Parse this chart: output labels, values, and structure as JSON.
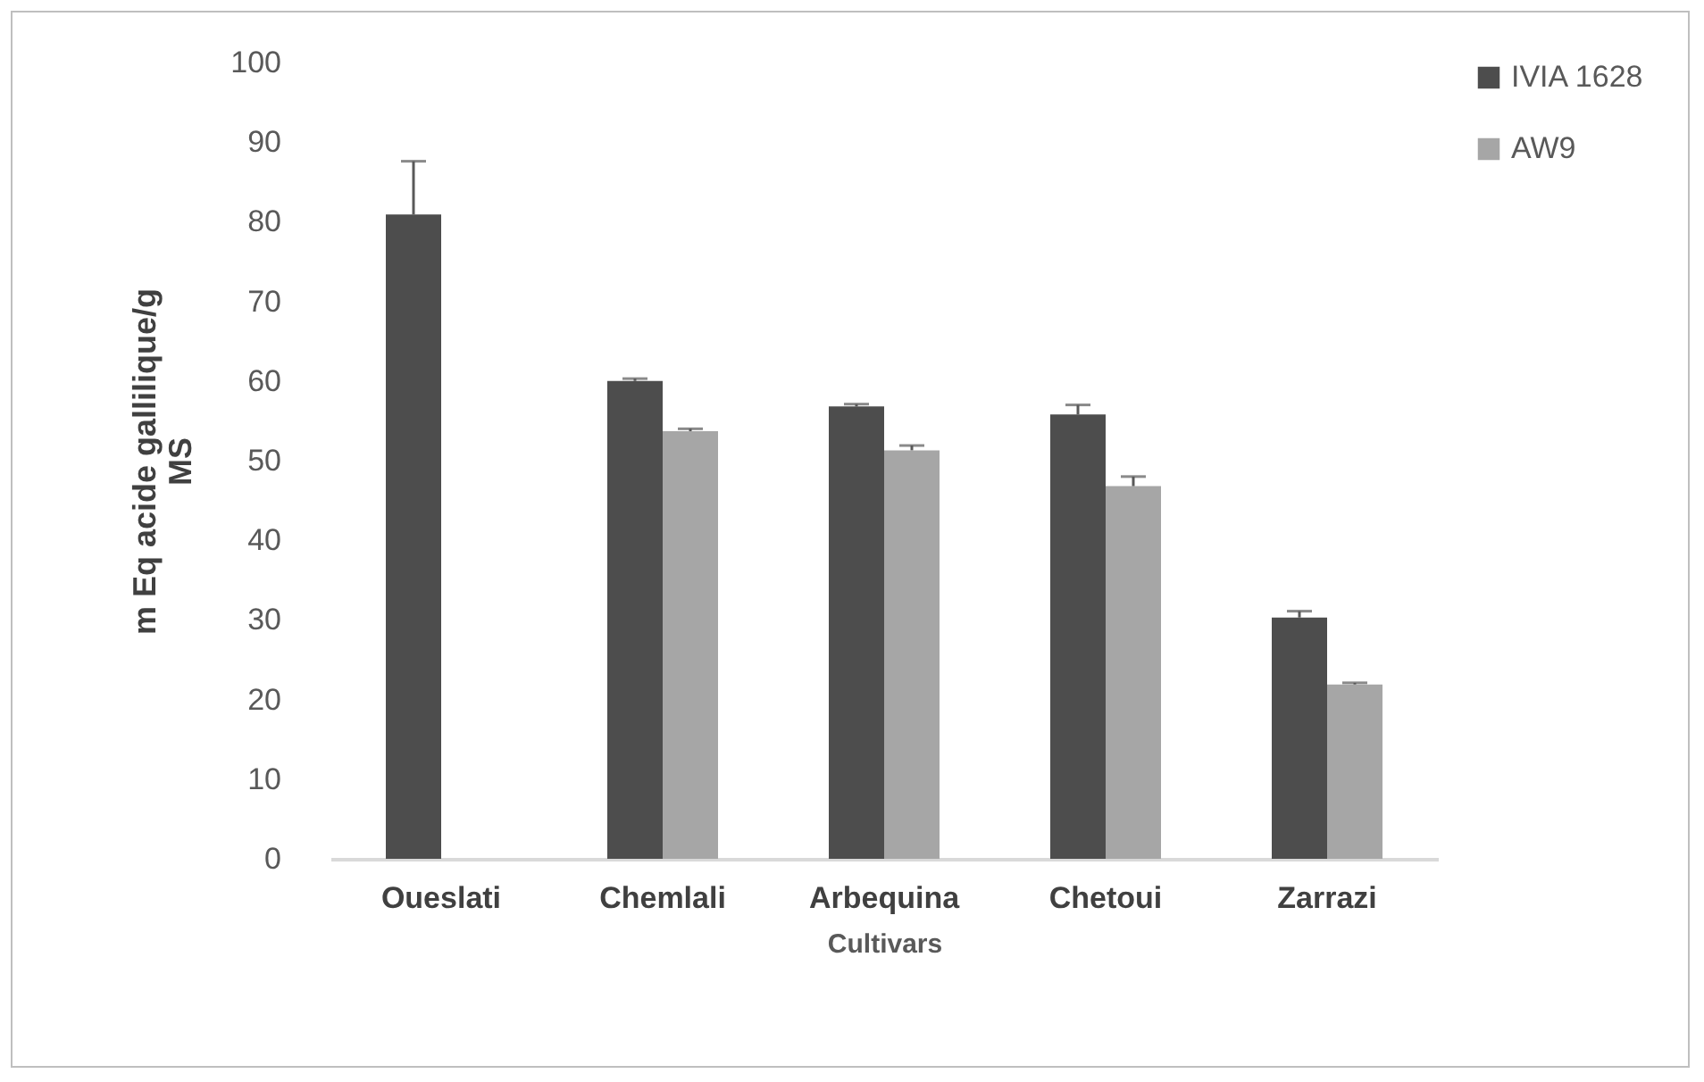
{
  "chart_data": {
    "type": "bar",
    "xlabel": "Cultivars",
    "ylabel": "m Eq acide gallilique/g\nMS",
    "categories": [
      "Oueslati",
      "Chemlali",
      "Arbequina",
      "Chetoui",
      "Zarrazi"
    ],
    "series": [
      {
        "name": "IVIA 1628",
        "color": "#4d4d4d",
        "values": [
          80.9,
          60.0,
          56.8,
          55.8,
          30.3
        ],
        "errors": [
          [
            80.9,
            87.6
          ],
          [
            60.0,
            60.3
          ],
          [
            56.8,
            57.1
          ],
          [
            55.8,
            57.0
          ],
          [
            30.3,
            31.1
          ]
        ]
      },
      {
        "name": "AW9",
        "color": "#a6a6a6",
        "values": [
          null,
          53.7,
          51.3,
          46.8,
          21.9
        ],
        "errors": [
          null,
          [
            53.7,
            54.0
          ],
          [
            51.3,
            51.9
          ],
          [
            46.8,
            48.0
          ],
          [
            21.9,
            22.1
          ]
        ]
      }
    ],
    "ylim": [
      0,
      100
    ],
    "yticks": [
      0,
      10,
      20,
      30,
      40,
      50,
      60,
      70,
      80,
      90,
      100
    ],
    "grid": false,
    "legend": "right"
  }
}
